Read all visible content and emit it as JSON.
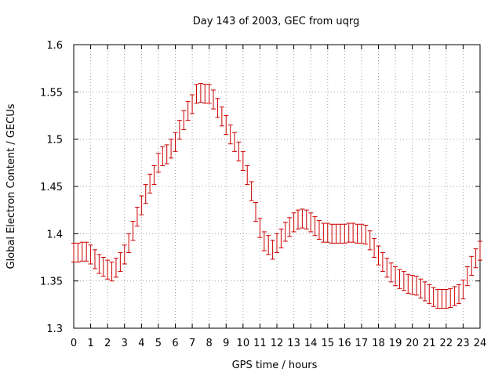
{
  "chart_data": {
    "type": "line",
    "title": "Day 143 of 2003, GEC from uqrg",
    "xlabel": "GPS time / hours",
    "ylabel": "Global Electron Content / GECUs",
    "xlim": [
      0,
      24
    ],
    "ylim": [
      1.3,
      1.6
    ],
    "xticks": [
      0,
      1,
      2,
      3,
      4,
      5,
      6,
      7,
      8,
      9,
      10,
      11,
      12,
      13,
      14,
      15,
      16,
      17,
      18,
      19,
      20,
      21,
      22,
      23,
      24
    ],
    "xtick_labels": [
      "0",
      "1",
      "2",
      "3",
      "4",
      "5",
      "6",
      "7",
      "8",
      "9",
      "10",
      "11",
      "12",
      "13",
      "14",
      "15",
      "16",
      "17",
      "18",
      "19",
      "20",
      "21",
      "22",
      "23",
      "24"
    ],
    "yticks": [
      1.3,
      1.35,
      1.4,
      1.45,
      1.5,
      1.55,
      1.6
    ],
    "ytick_labels": [
      "1.3",
      "1.35",
      "1.4",
      "1.45",
      "1.5",
      "1.55",
      "1.6"
    ],
    "grid": true,
    "error_bar": 0.01,
    "series_color": "#cc0000",
    "series": [
      {
        "x": [
          0,
          0.25,
          0.5,
          0.75,
          1,
          1.25,
          1.5,
          1.75,
          2,
          2.25,
          2.5,
          2.75,
          3,
          3.25,
          3.5,
          3.75,
          4,
          4.25,
          4.5,
          4.75,
          5,
          5.25,
          5.5,
          5.75,
          6,
          6.25,
          6.5,
          6.75,
          7,
          7.25,
          7.5,
          7.75,
          8,
          8.25,
          8.5,
          8.75,
          9,
          9.25,
          9.5,
          9.75,
          10,
          10.25,
          10.5,
          10.75,
          11,
          11.25,
          11.5,
          11.75,
          12,
          12.25,
          12.5,
          12.75,
          13,
          13.25,
          13.5,
          13.75,
          14,
          14.25,
          14.5,
          14.75,
          15,
          15.25,
          15.5,
          15.75,
          16,
          16.25,
          16.5,
          16.75,
          17,
          17.25,
          17.5,
          17.75,
          18,
          18.25,
          18.5,
          18.75,
          19,
          19.25,
          19.5,
          19.75,
          20,
          20.25,
          20.5,
          20.75,
          21,
          21.25,
          21.5,
          21.75,
          22,
          22.25,
          22.5,
          22.75,
          23,
          23.25,
          23.5,
          23.75,
          24
        ],
        "values": [
          1.38,
          1.38,
          1.381,
          1.381,
          1.378,
          1.373,
          1.368,
          1.365,
          1.362,
          1.36,
          1.364,
          1.37,
          1.378,
          1.39,
          1.403,
          1.418,
          1.43,
          1.442,
          1.453,
          1.462,
          1.475,
          1.482,
          1.484,
          1.49,
          1.497,
          1.51,
          1.52,
          1.53,
          1.537,
          1.548,
          1.549,
          1.548,
          1.548,
          1.542,
          1.533,
          1.524,
          1.515,
          1.505,
          1.497,
          1.487,
          1.477,
          1.462,
          1.445,
          1.423,
          1.406,
          1.392,
          1.388,
          1.383,
          1.39,
          1.395,
          1.402,
          1.407,
          1.412,
          1.415,
          1.416,
          1.415,
          1.412,
          1.408,
          1.404,
          1.401,
          1.401,
          1.4,
          1.4,
          1.4,
          1.4,
          1.401,
          1.401,
          1.4,
          1.4,
          1.399,
          1.393,
          1.385,
          1.377,
          1.37,
          1.364,
          1.359,
          1.355,
          1.352,
          1.35,
          1.347,
          1.346,
          1.345,
          1.342,
          1.339,
          1.336,
          1.333,
          1.331,
          1.331,
          1.331,
          1.332,
          1.334,
          1.336,
          1.341,
          1.355,
          1.366,
          1.374,
          1.382
        ]
      }
    ]
  }
}
